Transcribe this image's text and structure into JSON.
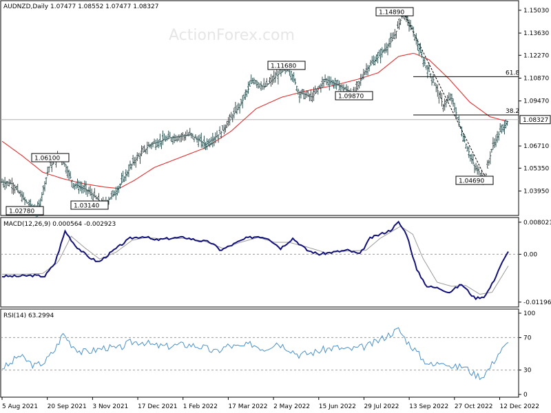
{
  "watermark": "ActionForex.com",
  "colors": {
    "bars": "#2f4f4f",
    "ma": "#e03030",
    "macd": "#101078",
    "signal": "#999999",
    "rsi": "#4a90c8",
    "grid": "#999999"
  },
  "chart_data": [
    {
      "type": "ohlc",
      "title": "AUDNZD,Daily 1.07477 1.08552 1.07477 1.08327",
      "ylim": [
        1.0262,
        1.1549
      ],
      "y_ticks": [
        "1.15030",
        "1.13630",
        "1.12270",
        "1.10870",
        "1.09470",
        "1.08327",
        "1.06710",
        "1.05350",
        "1.03950"
      ],
      "current_price": "1.08327",
      "x_range_days": [
        0,
        500
      ],
      "close_points": [
        [
          0,
          1.045
        ],
        [
          10,
          1.044
        ],
        [
          22,
          1.034
        ],
        [
          35,
          1.027
        ],
        [
          46,
          1.054
        ],
        [
          58,
          1.061
        ],
        [
          70,
          1.044
        ],
        [
          84,
          1.04
        ],
        [
          100,
          1.031
        ],
        [
          113,
          1.04
        ],
        [
          130,
          1.058
        ],
        [
          146,
          1.068
        ],
        [
          165,
          1.072
        ],
        [
          185,
          1.074
        ],
        [
          200,
          1.068
        ],
        [
          215,
          1.075
        ],
        [
          235,
          1.093
        ],
        [
          247,
          1.108
        ],
        [
          258,
          1.103
        ],
        [
          270,
          1.11
        ],
        [
          282,
          1.116
        ],
        [
          292,
          1.1
        ],
        [
          305,
          1.097
        ],
        [
          318,
          1.108
        ],
        [
          332,
          1.104
        ],
        [
          346,
          1.099
        ],
        [
          358,
          1.114
        ],
        [
          372,
          1.123
        ],
        [
          385,
          1.133
        ],
        [
          395,
          1.149
        ],
        [
          404,
          1.138
        ],
        [
          414,
          1.12
        ],
        [
          424,
          1.108
        ],
        [
          434,
          1.092
        ],
        [
          442,
          1.097
        ],
        [
          454,
          1.072
        ],
        [
          465,
          1.054
        ],
        [
          475,
          1.047
        ],
        [
          482,
          1.066
        ],
        [
          490,
          1.076
        ],
        [
          498,
          1.083
        ]
      ],
      "ma_points": [
        [
          0,
          1.07
        ],
        [
          20,
          1.061
        ],
        [
          40,
          1.051
        ],
        [
          60,
          1.047
        ],
        [
          80,
          1.044
        ],
        [
          100,
          1.042
        ],
        [
          115,
          1.041
        ],
        [
          130,
          1.046
        ],
        [
          150,
          1.054
        ],
        [
          175,
          1.06
        ],
        [
          200,
          1.066
        ],
        [
          225,
          1.076
        ],
        [
          250,
          1.09
        ],
        [
          275,
          1.097
        ],
        [
          300,
          1.101
        ],
        [
          325,
          1.104
        ],
        [
          350,
          1.108
        ],
        [
          370,
          1.112
        ],
        [
          390,
          1.122
        ],
        [
          405,
          1.124
        ],
        [
          420,
          1.12
        ],
        [
          440,
          1.108
        ],
        [
          460,
          1.094
        ],
        [
          480,
          1.085
        ],
        [
          498,
          1.082
        ]
      ],
      "annotations": [
        "1.14890",
        "1.11680",
        "1.09870",
        "1.06100",
        "1.04690",
        "1.03140",
        "1.02780"
      ],
      "fib_levels": [
        {
          "label": "61.8",
          "value": 1.1096
        },
        {
          "label": "38.2",
          "value": 1.0861
        }
      ],
      "x_labels": [
        "5 Aug 2021",
        "20 Sep 2021",
        "3 Nov 2021",
        "17 Dec 2021",
        "1 Feb 2022",
        "17 Mar 2022",
        "2 May 2022",
        "15 Jun 2022",
        "29 Jul 2022",
        "13 Sep 2022",
        "27 Oct 2022",
        "12 Dec 2022"
      ]
    },
    {
      "type": "line",
      "title": "MACD(12,26,9) 0.000564 -0.002923",
      "ylim": [
        -0.0125,
        0.0085
      ],
      "y_ticks": [
        "0.008021",
        "0.00",
        "-0.011962"
      ],
      "macd_points": [
        [
          0,
          -0.0055
        ],
        [
          15,
          -0.0055
        ],
        [
          30,
          -0.0053
        ],
        [
          42,
          -0.0055
        ],
        [
          52,
          -0.0022
        ],
        [
          62,
          0.0058
        ],
        [
          72,
          0.0022
        ],
        [
          84,
          -0.0005
        ],
        [
          95,
          -0.002
        ],
        [
          110,
          0.001
        ],
        [
          126,
          0.004
        ],
        [
          140,
          0.0045
        ],
        [
          150,
          0.0035
        ],
        [
          165,
          0.004
        ],
        [
          180,
          0.0042
        ],
        [
          192,
          0.0035
        ],
        [
          205,
          0.003
        ],
        [
          215,
          0.001
        ],
        [
          225,
          0.0022
        ],
        [
          240,
          0.004
        ],
        [
          252,
          0.0045
        ],
        [
          262,
          0.004
        ],
        [
          274,
          0.0015
        ],
        [
          286,
          0.004
        ],
        [
          300,
          0.001
        ],
        [
          312,
          0.0
        ],
        [
          325,
          0.0005
        ],
        [
          340,
          0.001
        ],
        [
          352,
          0.0
        ],
        [
          362,
          0.004
        ],
        [
          372,
          0.005
        ],
        [
          382,
          0.006
        ],
        [
          390,
          0.008
        ],
        [
          398,
          0.005
        ],
        [
          408,
          -0.004
        ],
        [
          418,
          -0.008
        ],
        [
          430,
          -0.0085
        ],
        [
          440,
          -0.0095
        ],
        [
          452,
          -0.0075
        ],
        [
          465,
          -0.011
        ],
        [
          475,
          -0.0105
        ],
        [
          483,
          -0.007
        ],
        [
          490,
          -0.003
        ],
        [
          498,
          0.0006
        ]
      ],
      "signal_points": [
        [
          0,
          -0.005
        ],
        [
          20,
          -0.005
        ],
        [
          40,
          -0.0048
        ],
        [
          55,
          -0.002
        ],
        [
          68,
          0.0045
        ],
        [
          82,
          0.0015
        ],
        [
          96,
          -0.0012
        ],
        [
          112,
          0.0005
        ],
        [
          128,
          0.0035
        ],
        [
          142,
          0.0042
        ],
        [
          160,
          0.0038
        ],
        [
          180,
          0.004
        ],
        [
          200,
          0.0032
        ],
        [
          218,
          0.0014
        ],
        [
          232,
          0.0028
        ],
        [
          252,
          0.0042
        ],
        [
          268,
          0.003
        ],
        [
          282,
          0.003
        ],
        [
          300,
          0.0018
        ],
        [
          318,
          0.0004
        ],
        [
          340,
          0.0008
        ],
        [
          358,
          0.001
        ],
        [
          372,
          0.004
        ],
        [
          392,
          0.007
        ],
        [
          404,
          0.005
        ],
        [
          414,
          -0.001
        ],
        [
          428,
          -0.007
        ],
        [
          442,
          -0.008
        ],
        [
          456,
          -0.0078
        ],
        [
          470,
          -0.01
        ],
        [
          482,
          -0.0095
        ],
        [
          498,
          -0.0029
        ]
      ]
    },
    {
      "type": "line",
      "title": "RSI(14) 63.2994",
      "ylim": [
        0,
        100
      ],
      "y_ticks": [
        "100",
        "70",
        "30",
        "0"
      ],
      "levels": [
        70,
        30
      ],
      "rsi_points": [
        [
          0,
          33
        ],
        [
          8,
          37
        ],
        [
          16,
          48
        ],
        [
          24,
          42
        ],
        [
          32,
          35
        ],
        [
          42,
          40
        ],
        [
          52,
          55
        ],
        [
          60,
          75
        ],
        [
          68,
          62
        ],
        [
          78,
          52
        ],
        [
          90,
          54
        ],
        [
          102,
          58
        ],
        [
          114,
          56
        ],
        [
          126,
          64
        ],
        [
          138,
          65
        ],
        [
          150,
          60
        ],
        [
          162,
          59
        ],
        [
          174,
          61
        ],
        [
          186,
          61
        ],
        [
          198,
          58
        ],
        [
          210,
          52
        ],
        [
          222,
          60
        ],
        [
          234,
          58
        ],
        [
          246,
          62
        ],
        [
          258,
          56
        ],
        [
          270,
          64
        ],
        [
          280,
          58
        ],
        [
          292,
          49
        ],
        [
          304,
          51
        ],
        [
          316,
          55
        ],
        [
          328,
          58
        ],
        [
          340,
          55
        ],
        [
          350,
          57
        ],
        [
          360,
          60
        ],
        [
          370,
          66
        ],
        [
          382,
          75
        ],
        [
          390,
          80
        ],
        [
          398,
          66
        ],
        [
          406,
          55
        ],
        [
          414,
          43
        ],
        [
          424,
          35
        ],
        [
          434,
          42
        ],
        [
          444,
          33
        ],
        [
          454,
          35
        ],
        [
          464,
          25
        ],
        [
          472,
          22
        ],
        [
          480,
          33
        ],
        [
          488,
          50
        ],
        [
          494,
          58
        ],
        [
          498,
          63
        ]
      ]
    }
  ]
}
